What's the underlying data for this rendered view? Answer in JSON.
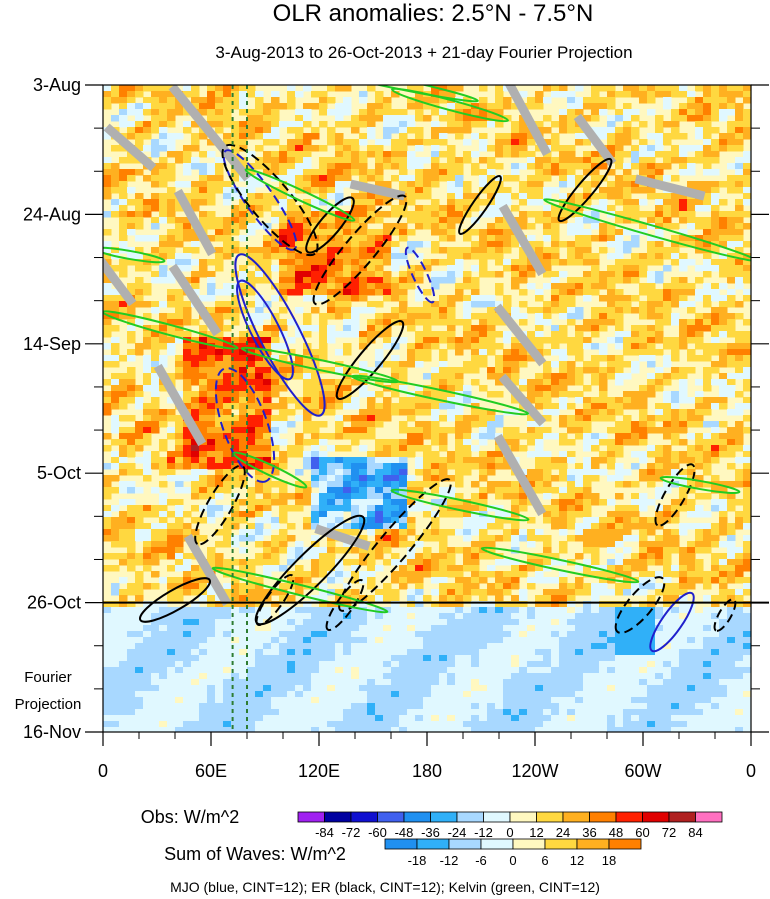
{
  "chart_data": {
    "type": "heatmap",
    "title": "OLR anomalies: 2.5°N - 7.5°N",
    "subtitle": "3-Aug-2013 to 26-Oct-2013 + 21-day Fourier Projection",
    "x_axis": {
      "range_deg_east": [
        0,
        360
      ],
      "ticks": [
        {
          "lon": 0,
          "label": "0"
        },
        {
          "lon": 60,
          "label": "60E"
        },
        {
          "lon": 120,
          "label": "120E"
        },
        {
          "lon": 180,
          "label": "180"
        },
        {
          "lon": 240,
          "label": "120W"
        },
        {
          "lon": 300,
          "label": "60W"
        },
        {
          "lon": 360,
          "label": "0"
        }
      ]
    },
    "y_axis": {
      "range_days": [
        0,
        105
      ],
      "ticks": [
        {
          "day": 0,
          "label": "3-Aug"
        },
        {
          "day": 21,
          "label": "24-Aug"
        },
        {
          "day": 42,
          "label": "14-Sep"
        },
        {
          "day": 63,
          "label": "5-Oct"
        },
        {
          "day": 84,
          "label": "26-Oct"
        },
        {
          "day": 105,
          "label": "16-Nov"
        }
      ]
    },
    "projection_label": [
      "Fourier",
      "Projection"
    ],
    "projection_start_day": 84,
    "obs_colorbar": {
      "label": "Obs: W/m^2",
      "levels": [
        -84,
        -72,
        -60,
        -48,
        -36,
        -24,
        -12,
        0,
        12,
        24,
        36,
        48,
        60,
        72,
        84
      ],
      "level_labels": [
        "-84",
        "-72",
        "-60",
        "-48",
        "-36",
        "-24",
        "-12",
        "0",
        "12",
        "24",
        "36",
        "48",
        "60",
        "72",
        "84"
      ],
      "colors": [
        "#a020f0",
        "#0000a0",
        "#1010d0",
        "#4060ee",
        "#2090f0",
        "#30b0f8",
        "#a8d8ff",
        "#e0f8ff",
        "#fff8c0",
        "#ffd840",
        "#ffb020",
        "#ff8000",
        "#ff2000",
        "#e00000",
        "#b02020",
        "#ff70c0"
      ]
    },
    "waves_colorbar": {
      "label": "Sum of Waves: W/m^2",
      "levels": [
        -18,
        -12,
        -6,
        0,
        6,
        12,
        18
      ],
      "level_labels": [
        "-18",
        "-12",
        "-6",
        "0",
        "6",
        "12",
        "18"
      ],
      "colors": [
        "#2090f0",
        "#30b0f8",
        "#a8d8ff",
        "#e0f8ff",
        "#fff8c0",
        "#ffd840",
        "#ffb020",
        "#ff8000"
      ]
    },
    "reference_lines": [
      {
        "type": "vertical-dashed",
        "lon": 72,
        "color": "#2e7d32"
      },
      {
        "type": "vertical-dashed",
        "lon": 80,
        "color": "#2e7d32"
      },
      {
        "type": "horizontal-solid",
        "day": 84,
        "color": "#000000"
      }
    ],
    "contour_groups": [
      {
        "name": "MJO",
        "color": "#2020cc",
        "cint": 12
      },
      {
        "name": "ER",
        "color": "#000000",
        "cint": 12
      },
      {
        "name": "Kelvin",
        "color": "#22cc22",
        "cint": 12
      }
    ],
    "footer": "MJO (blue, CINT=12); ER (black, CINT=12); Kelvin (green, CINT=12)"
  }
}
